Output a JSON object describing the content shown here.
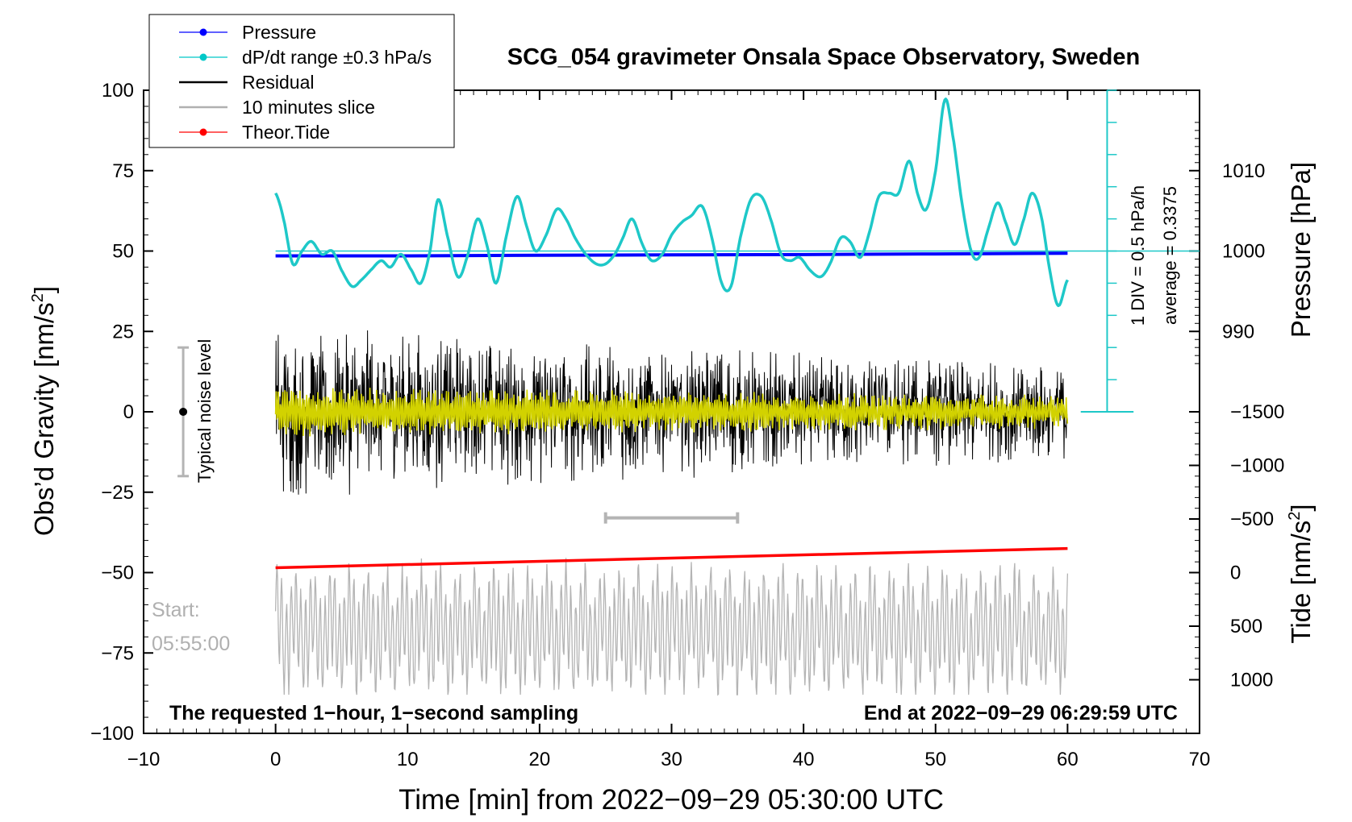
{
  "chart_data": {
    "type": "line",
    "title": "SCG_054 gravimeter Onsala Space Observatory, Sweden",
    "xlabel": "Time [min] from 2022−09−29 05:30:00 UTC",
    "ylabel_left": "Obs’d Gravity [nm/s",
    "ylabel_left_sup": "2",
    "ylabel_left_end": "]",
    "ylabel_pressure": "Pressure [hPa]",
    "ylabel_tide": "Tide [nm/s",
    "ylabel_tide_sup": "2",
    "ylabel_tide_end": "]",
    "xlim": [
      -10,
      70
    ],
    "ylim_left": [
      -100,
      100
    ],
    "x_ticks": [
      -10,
      0,
      10,
      20,
      30,
      40,
      50,
      60,
      70
    ],
    "x_tick_labels": [
      "−10",
      "0",
      "10",
      "20",
      "30",
      "40",
      "50",
      "60",
      "70"
    ],
    "y_left_ticks": [
      100,
      75,
      50,
      25,
      0,
      -25,
      -50,
      -75,
      -100
    ],
    "y_left_tick_labels": [
      "100",
      "75",
      "50",
      "25",
      "0",
      "−25",
      "−50",
      "−75",
      "−100"
    ],
    "pressure_ticks": [
      1010,
      1000,
      990
    ],
    "pressure_tick_labels": [
      "1010",
      "1000",
      "990"
    ],
    "tide_ticks": [
      1000,
      500,
      0,
      -500,
      -1000,
      -1500
    ],
    "tide_tick_labels": [
      "1000",
      "500",
      "0",
      "−500",
      "−1000",
      "−1500"
    ],
    "legend": {
      "position": "top-left",
      "entries": [
        {
          "label": "Pressure",
          "color": "#0000ff",
          "marker": true
        },
        {
          "label": "dP/dt range ±0.3 hPa/s",
          "color": "#00c8c8",
          "marker": true
        },
        {
          "label": "Residual",
          "color": "#000000",
          "marker": false
        },
        {
          "label": "10 minutes slice",
          "color": "#b0b0b0",
          "marker": false
        },
        {
          "label": "Theor.Tide",
          "color": "#ff0000",
          "marker": true
        }
      ]
    },
    "annotations": {
      "noise_label": "Typical noise level",
      "noise_range": [
        -20,
        20
      ],
      "noise_x": -7,
      "div_label": "1 DIV = 0.5 hPa/h",
      "average_label": "average = 0.3375",
      "start_label": "Start:",
      "start_time": "05:55:00",
      "slice_bracket_x": [
        25,
        35
      ],
      "slice_bracket_y": -33,
      "bottom_left": "The requested 1−hour, 1−second sampling",
      "bottom_right": "End at 2022−09−29 06:29:59 UTC"
    },
    "series": [
      {
        "name": "dP/dt",
        "color": "#1ec8c8",
        "x": [
          0,
          0.6,
          1.3,
          2,
          2.7,
          3.5,
          4.3,
          5,
          5.8,
          6.5,
          7.2,
          8,
          8.7,
          9.5,
          10.3,
          11,
          11.7,
          12.3,
          13,
          13.8,
          14.5,
          15.3,
          16,
          16.7,
          17.5,
          18.3,
          19,
          19.7,
          20.5,
          21.3,
          22,
          22.7,
          23.5,
          24.3,
          25,
          25.7,
          26.3,
          27,
          27.8,
          28.5,
          29.3,
          30,
          30.8,
          31.5,
          32.3,
          33,
          33.8,
          34.5,
          35.2,
          36,
          36.8,
          37.5,
          38.3,
          39,
          39.7,
          40.5,
          41.3,
          42,
          42.8,
          43.5,
          44.3,
          45,
          45.7,
          46.5,
          47.2,
          48,
          48.7,
          49.3,
          50,
          50.7,
          51.3,
          52,
          52.7,
          53.3,
          54,
          54.7,
          55.3,
          56,
          56.7,
          57.3,
          58,
          58.7,
          59.3,
          60
        ],
        "y": [
          68,
          60,
          46,
          50,
          53,
          49,
          50,
          44,
          39,
          41,
          44,
          47,
          45,
          49,
          44,
          40,
          50,
          66,
          55,
          42,
          48,
          60,
          52,
          40,
          55,
          67,
          58,
          50,
          55,
          63,
          60,
          54,
          49,
          46,
          46,
          49,
          54,
          60,
          52,
          47,
          49,
          55,
          59,
          61,
          64,
          55,
          40,
          39,
          54,
          66,
          67,
          60,
          49,
          47,
          48,
          44,
          42,
          46,
          54,
          53,
          48,
          56,
          67,
          68,
          68,
          78,
          67,
          63,
          75,
          97,
          86,
          65,
          50,
          48,
          57,
          65,
          59,
          52,
          60,
          68,
          61,
          43,
          33,
          41
        ]
      },
      {
        "name": "Pressure",
        "color": "#0000ff",
        "x": [
          0,
          10,
          20,
          30,
          40,
          50,
          60
        ],
        "y": [
          48.5,
          48.5,
          48.7,
          48.8,
          48.9,
          49.1,
          49.3
        ]
      },
      {
        "name": "Theor.Tide",
        "color": "#ff0000",
        "x": [
          0,
          60
        ],
        "y": [
          -48.5,
          -42.5
        ]
      }
    ]
  }
}
